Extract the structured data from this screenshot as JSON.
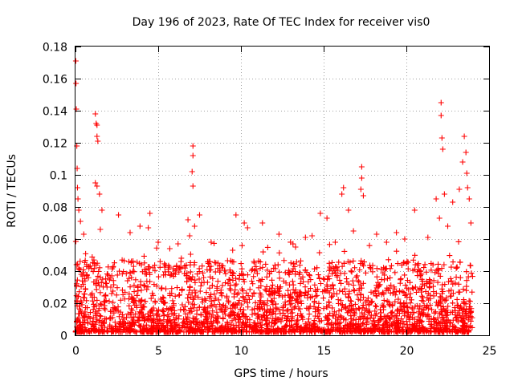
{
  "chart_data": {
    "type": "scatter",
    "title": "Day 196 of 2023, Rate Of TEC Index for receiver vis0",
    "xlabel": "GPS time / hours",
    "ylabel": "ROTI / TECUs",
    "xlim": [
      0,
      25
    ],
    "ylim": [
      0,
      0.18
    ],
    "x_ticks": [
      "0",
      "5",
      "10",
      "15",
      "20",
      "25"
    ],
    "y_ticks": [
      "0",
      "0.02",
      "0.04",
      "0.06",
      "0.08",
      "0.1",
      "0.12",
      "0.14",
      "0.16",
      "0.18"
    ],
    "grid": true,
    "marker": "plus",
    "color": "#ff0000",
    "x_range_of_data": [
      0,
      24
    ],
    "series": [
      {
        "points": [
          [
            0.02,
            0.171
          ],
          [
            0.03,
            0.157
          ],
          [
            0.05,
            0.141
          ],
          [
            0.08,
            0.118
          ],
          [
            0.1,
            0.104
          ],
          [
            0.12,
            0.092
          ],
          [
            0.15,
            0.085
          ],
          [
            0.2,
            0.078
          ],
          [
            0.3,
            0.071
          ],
          [
            0.5,
            0.063
          ],
          [
            1.2,
            0.138
          ],
          [
            1.25,
            0.132
          ],
          [
            1.3,
            0.124
          ],
          [
            1.35,
            0.121
          ],
          [
            1.3,
            0.131
          ],
          [
            1.2,
            0.095
          ],
          [
            1.3,
            0.093
          ],
          [
            1.45,
            0.088
          ],
          [
            1.5,
            0.066
          ],
          [
            1.6,
            0.078
          ],
          [
            2.6,
            0.075
          ],
          [
            3.3,
            0.064
          ],
          [
            3.9,
            0.068
          ],
          [
            4.5,
            0.076
          ],
          [
            4.4,
            0.067
          ],
          [
            5.0,
            0.058
          ],
          [
            5.7,
            0.054
          ],
          [
            6.2,
            0.057
          ],
          [
            6.8,
            0.072
          ],
          [
            6.9,
            0.062
          ],
          [
            7.1,
            0.118
          ],
          [
            7.1,
            0.112
          ],
          [
            7.05,
            0.102
          ],
          [
            7.1,
            0.093
          ],
          [
            7.2,
            0.068
          ],
          [
            7.5,
            0.075
          ],
          [
            8.2,
            0.058
          ],
          [
            9.5,
            0.053
          ],
          [
            9.7,
            0.075
          ],
          [
            10.2,
            0.07
          ],
          [
            10.4,
            0.067
          ],
          [
            11.3,
            0.07
          ],
          [
            12.3,
            0.063
          ],
          [
            13.3,
            0.055
          ],
          [
            13.9,
            0.061
          ],
          [
            14.3,
            0.062
          ],
          [
            14.8,
            0.076
          ],
          [
            15.2,
            0.073
          ],
          [
            15.7,
            0.058
          ],
          [
            16.1,
            0.088
          ],
          [
            16.2,
            0.092
          ],
          [
            16.5,
            0.078
          ],
          [
            16.8,
            0.065
          ],
          [
            17.3,
            0.105
          ],
          [
            17.3,
            0.098
          ],
          [
            17.25,
            0.091
          ],
          [
            17.4,
            0.087
          ],
          [
            18.2,
            0.063
          ],
          [
            18.8,
            0.058
          ],
          [
            19.4,
            0.064
          ],
          [
            19.9,
            0.06
          ],
          [
            20.5,
            0.078
          ],
          [
            21.3,
            0.061
          ],
          [
            21.8,
            0.085
          ],
          [
            22.0,
            0.073
          ],
          [
            22.1,
            0.145
          ],
          [
            22.1,
            0.137
          ],
          [
            22.15,
            0.123
          ],
          [
            22.2,
            0.116
          ],
          [
            22.3,
            0.088
          ],
          [
            22.5,
            0.068
          ],
          [
            22.8,
            0.083
          ],
          [
            23.2,
            0.091
          ],
          [
            23.4,
            0.108
          ],
          [
            23.5,
            0.124
          ],
          [
            23.6,
            0.114
          ],
          [
            23.65,
            0.101
          ],
          [
            23.7,
            0.092
          ],
          [
            23.8,
            0.085
          ],
          [
            23.9,
            0.07
          ]
        ]
      }
    ]
  }
}
